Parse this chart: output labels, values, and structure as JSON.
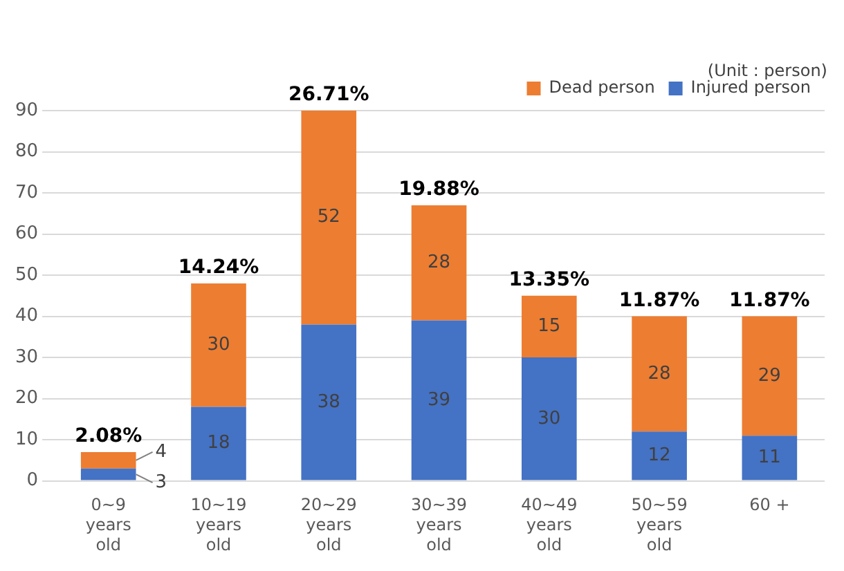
{
  "chart_data": {
    "type": "bar",
    "stacked": true,
    "categories": [
      "0~9 years old",
      "10~19 years old",
      "20~29 years old",
      "30~39 years old",
      "40~49 years old",
      "50~59 years old",
      "60 +"
    ],
    "series": [
      {
        "name": "Injured person",
        "color": "#4472c4",
        "values": [
          3,
          18,
          38,
          39,
          30,
          12,
          11
        ]
      },
      {
        "name": "Dead person",
        "color": "#ed7d31",
        "values": [
          4,
          30,
          52,
          28,
          15,
          28,
          29
        ]
      }
    ],
    "ylim": [
      0,
      90
    ],
    "yticks": [
      0,
      10,
      20,
      30,
      40,
      50,
      60,
      70,
      80,
      90
    ],
    "grid": "y",
    "legend": "top right",
    "data_labels": true,
    "annotations": [
      "(Unit : person)",
      {
        "text": "2.08%",
        "x": "0~9 years old",
        "y": 7
      },
      {
        "text": "14.24%",
        "x": "10~19 years old",
        "y": 48
      },
      {
        "text": "26.71%",
        "x": "20~29 years old",
        "y": 90
      },
      {
        "text": "19.88%",
        "x": "30~39 years old",
        "y": 67
      },
      {
        "text": "13.35%",
        "x": "40~49 years old",
        "y": 45
      },
      {
        "text": "11.87%",
        "x": "50~59 years old",
        "y": 40
      },
      {
        "text": "11.87%",
        "x": "60 +",
        "y": 40
      }
    ]
  }
}
